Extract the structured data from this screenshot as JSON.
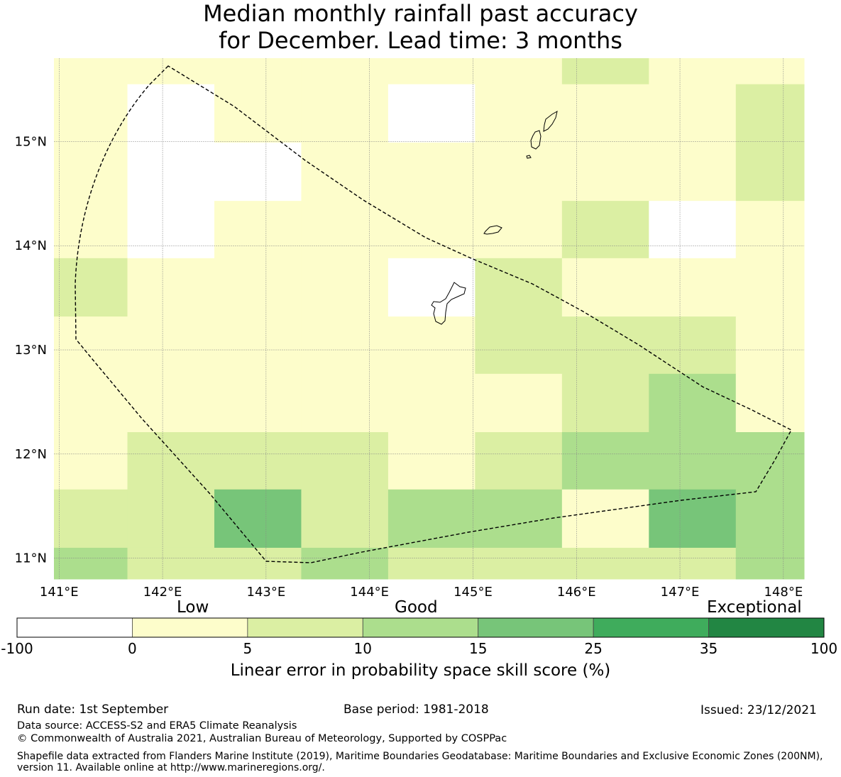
{
  "title": {
    "line1": "Median monthly rainfall past accuracy",
    "line2": "for December. Lead time: 3 months"
  },
  "map": {
    "lon_ticks": [
      "141°E",
      "142°E",
      "143°E",
      "144°E",
      "145°E",
      "146°E",
      "147°E",
      "148°E"
    ],
    "lat_ticks": [
      "11°N",
      "12°N",
      "13°N",
      "14°N",
      "15°N"
    ],
    "lon_range": [
      140.95,
      148.2
    ],
    "lat_range": [
      10.8,
      15.8
    ],
    "grid": true,
    "cell_size_deg": 0.84,
    "grid_origin_lon": 140.8,
    "grid_rows_top_lat": [
      15.8,
      15.55,
      14.99,
      14.43,
      13.88,
      13.32,
      12.77,
      12.21,
      11.66,
      11.1,
      10.8
    ],
    "grid_cols_left_lon": [
      140.95,
      141.66,
      142.5,
      143.34,
      144.18,
      145.02,
      145.86,
      146.7,
      147.54,
      148.2
    ],
    "cells_skill_class": [
      [
        1,
        1,
        1,
        1,
        1,
        1,
        2,
        1,
        1,
        3
      ],
      [
        1,
        0,
        1,
        1,
        0,
        1,
        1,
        1,
        2,
        2
      ],
      [
        1,
        0,
        0,
        1,
        1,
        1,
        1,
        1,
        2,
        2
      ],
      [
        1,
        0,
        1,
        1,
        1,
        1,
        2,
        0,
        1,
        1
      ],
      [
        2,
        1,
        1,
        1,
        0,
        2,
        1,
        1,
        1,
        2
      ],
      [
        1,
        1,
        1,
        1,
        1,
        2,
        2,
        2,
        1,
        2
      ],
      [
        1,
        1,
        1,
        1,
        1,
        1,
        2,
        3,
        1,
        1
      ],
      [
        1,
        2,
        2,
        2,
        1,
        2,
        3,
        3,
        3,
        2
      ],
      [
        2,
        2,
        4,
        2,
        3,
        3,
        1,
        4,
        3,
        2
      ],
      [
        3,
        2,
        2,
        3,
        2,
        2,
        2,
        2,
        3,
        2
      ]
    ],
    "features": [
      "eez-boundary-dashed",
      "guam-island",
      "rota-island",
      "tinian-saipan-islands"
    ]
  },
  "legend": {
    "categories": [
      "Low",
      "Good",
      "Exceptional"
    ],
    "colors": [
      "#ffffff",
      "#fdfdcb",
      "#dbefa3",
      "#acde8d",
      "#77c579",
      "#3fac5c",
      "#228643"
    ],
    "ticks": [
      "-100",
      "0",
      "5",
      "10",
      "15",
      "25",
      "35",
      "100"
    ],
    "title": "Linear error in probability space skill score (%)"
  },
  "footer": {
    "run_date": "Run date: 1st September",
    "base_period": "Base period: 1981-2018",
    "issued": "Issued: 23/12/2021",
    "data_source": "Data source: ACCESS-S2 and ERA5 Climate Reanalysis",
    "copyright": "© Commonwealth of Australia 2021, Australian Bureau of Meteorology, Supported by COSPPac",
    "shapefile": "Shapefile data extracted from Flanders Marine Institute (2019), Maritime Boundaries Geodatabase: Maritime Boundaries and Exclusive Economic Zones (200NM), version 11. Available online at http://www.marineregions.org/."
  }
}
